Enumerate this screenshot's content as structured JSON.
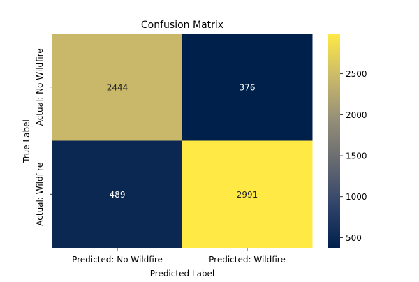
{
  "chart_data": {
    "type": "heatmap",
    "title": "Confusion Matrix",
    "xlabel": "Predicted Label",
    "ylabel": "True Label",
    "x_categories": [
      "Predicted: No Wildfire",
      "Predicted: Wildfire"
    ],
    "y_categories": [
      "Actual: No Wildfire",
      "Actual: Wildfire"
    ],
    "values": [
      [
        2444,
        376
      ],
      [
        489,
        2991
      ]
    ],
    "colormap": "cividis",
    "colorbar": {
      "ticks": [
        500,
        1000,
        1500,
        2000,
        2500
      ],
      "range": [
        376,
        2991
      ]
    },
    "annotation_colors": {
      "on_dark": "#ffffff",
      "on_light": "#262626"
    }
  }
}
